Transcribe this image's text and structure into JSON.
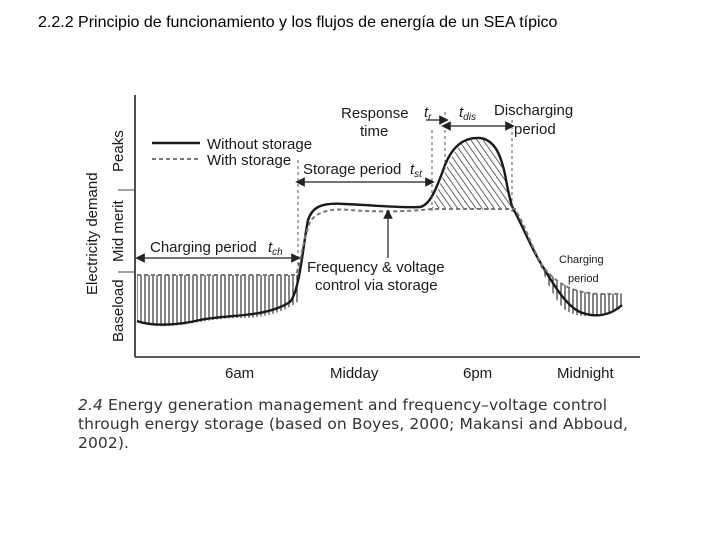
{
  "slide": {
    "title": "2.2.2 Principio de funcionamiento y los flujos de energía de un SEA típico"
  },
  "diagram": {
    "y_axis_label": "Electricity demand",
    "y_bands": [
      "Baseload",
      "Mid merit",
      "Peaks"
    ],
    "x_ticks": [
      "6am",
      "Midday",
      "6pm",
      "Midnight"
    ],
    "legend": {
      "without_storage": "Without storage",
      "with_storage": "With storage"
    },
    "annotations": {
      "response_time_1": "Response",
      "response_time_2": "time",
      "t_r": "t",
      "t_r_sub": "r",
      "t_dis": "t",
      "t_dis_sub": "dis",
      "discharging_1": "Discharging",
      "discharging_2": "period",
      "storage_period": "Storage period",
      "t_st": "t",
      "t_st_sub": "st",
      "charging_period": "Charging period",
      "t_ch": "t",
      "t_ch_sub": "ch",
      "freq_voltage_1": "Frequency & voltage",
      "freq_voltage_2": "control via storage",
      "charging_right_1": "Charging",
      "charging_right_2": "period"
    }
  },
  "caption": {
    "number": "2.4",
    "text": "Energy generation management and frequency–voltage control through energy storage (based on Boyes, 2000; Makansi and Abboud, 2002)."
  }
}
